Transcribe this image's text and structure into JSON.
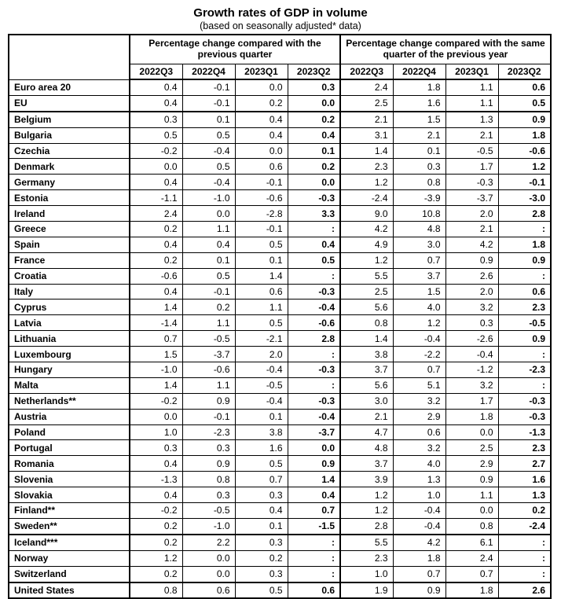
{
  "title": "Growth rates of GDP in volume",
  "subtitle": "(based on seasonally adjusted* data)",
  "header": {
    "group1": "Percentage change compared with the previous quarter",
    "group2": "Percentage change compared with the same quarter of the previous year",
    "quarters": [
      "2022Q3",
      "2022Q4",
      "2023Q1",
      "2023Q2",
      "2022Q3",
      "2022Q4",
      "2023Q1",
      "2023Q2"
    ]
  },
  "rows": [
    {
      "name": "Euro area 20",
      "values": [
        "0.4",
        "-0.1",
        "0.0",
        "0.3",
        "2.4",
        "1.8",
        "1.1",
        "0.6"
      ]
    },
    {
      "name": "EU",
      "values": [
        "0.4",
        "-0.1",
        "0.2",
        "0.0",
        "2.5",
        "1.6",
        "1.1",
        "0.5"
      ]
    },
    {
      "name": "Belgium",
      "values": [
        "0.3",
        "0.1",
        "0.4",
        "0.2",
        "2.1",
        "1.5",
        "1.3",
        "0.9"
      ]
    },
    {
      "name": "Bulgaria",
      "values": [
        "0.5",
        "0.5",
        "0.4",
        "0.4",
        "3.1",
        "2.1",
        "2.1",
        "1.8"
      ]
    },
    {
      "name": "Czechia",
      "values": [
        "-0.2",
        "-0.4",
        "0.0",
        "0.1",
        "1.4",
        "0.1",
        "-0.5",
        "-0.6"
      ]
    },
    {
      "name": "Denmark",
      "values": [
        "0.0",
        "0.5",
        "0.6",
        "0.2",
        "2.3",
        "0.3",
        "1.7",
        "1.2"
      ]
    },
    {
      "name": "Germany",
      "values": [
        "0.4",
        "-0.4",
        "-0.1",
        "0.0",
        "1.2",
        "0.8",
        "-0.3",
        "-0.1"
      ]
    },
    {
      "name": "Estonia",
      "values": [
        "-1.1",
        "-1.0",
        "-0.6",
        "-0.3",
        "-2.4",
        "-3.9",
        "-3.7",
        "-3.0"
      ]
    },
    {
      "name": "Ireland",
      "values": [
        "2.4",
        "0.0",
        "-2.8",
        "3.3",
        "9.0",
        "10.8",
        "2.0",
        "2.8"
      ]
    },
    {
      "name": "Greece",
      "values": [
        "0.2",
        "1.1",
        "-0.1",
        ":",
        "4.2",
        "4.8",
        "2.1",
        ":"
      ]
    },
    {
      "name": "Spain",
      "values": [
        "0.4",
        "0.4",
        "0.5",
        "0.4",
        "4.9",
        "3.0",
        "4.2",
        "1.8"
      ]
    },
    {
      "name": "France",
      "values": [
        "0.2",
        "0.1",
        "0.1",
        "0.5",
        "1.2",
        "0.7",
        "0.9",
        "0.9"
      ]
    },
    {
      "name": "Croatia",
      "values": [
        "-0.6",
        "0.5",
        "1.4",
        ":",
        "5.5",
        "3.7",
        "2.6",
        ":"
      ]
    },
    {
      "name": "Italy",
      "values": [
        "0.4",
        "-0.1",
        "0.6",
        "-0.3",
        "2.5",
        "1.5",
        "2.0",
        "0.6"
      ]
    },
    {
      "name": "Cyprus",
      "values": [
        "1.4",
        "0.2",
        "1.1",
        "-0.4",
        "5.6",
        "4.0",
        "3.2",
        "2.3"
      ]
    },
    {
      "name": "Latvia",
      "values": [
        "-1.4",
        "1.1",
        "0.5",
        "-0.6",
        "0.8",
        "1.2",
        "0.3",
        "-0.5"
      ]
    },
    {
      "name": "Lithuania",
      "values": [
        "0.7",
        "-0.5",
        "-2.1",
        "2.8",
        "1.4",
        "-0.4",
        "-2.6",
        "0.9"
      ]
    },
    {
      "name": "Luxembourg",
      "values": [
        "1.5",
        "-3.7",
        "2.0",
        ":",
        "3.8",
        "-2.2",
        "-0.4",
        ":"
      ]
    },
    {
      "name": "Hungary",
      "values": [
        "-1.0",
        "-0.6",
        "-0.4",
        "-0.3",
        "3.7",
        "0.7",
        "-1.2",
        "-2.3"
      ]
    },
    {
      "name": "Malta",
      "values": [
        "1.4",
        "1.1",
        "-0.5",
        ":",
        "5.6",
        "5.1",
        "3.2",
        ":"
      ]
    },
    {
      "name": "Netherlands**",
      "values": [
        "-0.2",
        "0.9",
        "-0.4",
        "-0.3",
        "3.0",
        "3.2",
        "1.7",
        "-0.3"
      ]
    },
    {
      "name": "Austria",
      "values": [
        "0.0",
        "-0.1",
        "0.1",
        "-0.4",
        "2.1",
        "2.9",
        "1.8",
        "-0.3"
      ]
    },
    {
      "name": "Poland",
      "values": [
        "1.0",
        "-2.3",
        "3.8",
        "-3.7",
        "4.7",
        "0.6",
        "0.0",
        "-1.3"
      ]
    },
    {
      "name": "Portugal",
      "values": [
        "0.3",
        "0.3",
        "1.6",
        "0.0",
        "4.8",
        "3.2",
        "2.5",
        "2.3"
      ]
    },
    {
      "name": "Romania",
      "values": [
        "0.4",
        "0.9",
        "0.5",
        "0.9",
        "3.7",
        "4.0",
        "2.9",
        "2.7"
      ]
    },
    {
      "name": "Slovenia",
      "values": [
        "-1.3",
        "0.8",
        "0.7",
        "1.4",
        "3.9",
        "1.3",
        "0.9",
        "1.6"
      ]
    },
    {
      "name": "Slovakia",
      "values": [
        "0.4",
        "0.3",
        "0.3",
        "0.4",
        "1.2",
        "1.0",
        "1.1",
        "1.3"
      ]
    },
    {
      "name": "Finland**",
      "values": [
        "-0.2",
        "-0.5",
        "0.4",
        "0.7",
        "1.2",
        "-0.4",
        "0.0",
        "0.2"
      ]
    },
    {
      "name": "Sweden**",
      "values": [
        "0.2",
        "-1.0",
        "0.1",
        "-1.5",
        "2.8",
        "-0.4",
        "0.8",
        "-2.4"
      ]
    },
    {
      "name": "Iceland***",
      "values": [
        "0.2",
        "2.2",
        "0.3",
        ":",
        "5.5",
        "4.2",
        "6.1",
        ":"
      ]
    },
    {
      "name": "Norway",
      "values": [
        "1.2",
        "0.0",
        "0.2",
        ":",
        "2.3",
        "1.8",
        "2.4",
        ":"
      ]
    },
    {
      "name": "Switzerland",
      "values": [
        "0.2",
        "0.0",
        "0.3",
        ":",
        "1.0",
        "0.7",
        "0.7",
        ":"
      ]
    },
    {
      "name": "United States",
      "values": [
        "0.8",
        "0.6",
        "0.5",
        "0.6",
        "1.9",
        "0.9",
        "1.8",
        "2.6"
      ]
    }
  ]
}
